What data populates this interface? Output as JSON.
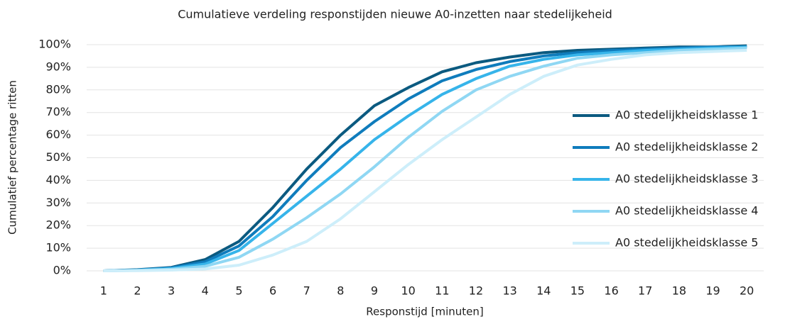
{
  "chart_data": {
    "type": "line",
    "title": "Cumulatieve verdeling responstijden nieuwe A0-inzetten naar stedelijkeheid",
    "x_label": "Responstijd [minuten]",
    "y_label": "Cumulatief percentage ritten",
    "categories": [
      "1",
      "2",
      "3",
      "4",
      "5",
      "6",
      "7",
      "8",
      "9",
      "10",
      "11",
      "12",
      "13",
      "14",
      "15",
      "16",
      "17",
      "18",
      "19",
      "20"
    ],
    "ylim": [
      0,
      100
    ],
    "yticks": [
      {
        "value": 0,
        "label": "0%"
      },
      {
        "value": 10,
        "label": "10%"
      },
      {
        "value": 20,
        "label": "20%"
      },
      {
        "value": 30,
        "label": "30%"
      },
      {
        "value": 40,
        "label": "40%"
      },
      {
        "value": 50,
        "label": "50%"
      },
      {
        "value": 60,
        "label": "60%"
      },
      {
        "value": 70,
        "label": "70%"
      },
      {
        "value": 80,
        "label": "80%"
      },
      {
        "value": 90,
        "label": "90%"
      },
      {
        "value": 100,
        "label": "100%"
      }
    ],
    "grid": true,
    "legend": "right",
    "series": [
      {
        "name": "A0 stedelijkheidsklasse 1",
        "color": "#0b5a80",
        "values": [
          0,
          0.5,
          1.5,
          5,
          13,
          28,
          45,
          60,
          73,
          81,
          88,
          92,
          94.5,
          96.5,
          97.5,
          98,
          98.5,
          99,
          99,
          99.5
        ]
      },
      {
        "name": "A0 stedelijkheidsklasse 2",
        "color": "#0f7cbc",
        "values": [
          0,
          0.4,
          1.3,
          4,
          11,
          24,
          40,
          54.5,
          66,
          76,
          84,
          89,
          92.5,
          95,
          96.5,
          97.5,
          98,
          98.5,
          99,
          99
        ]
      },
      {
        "name": "A0 stedelijkheidsklasse 3",
        "color": "#36b4ea",
        "values": [
          0,
          0.3,
          1,
          3,
          9,
          21,
          33,
          45,
          58,
          68.5,
          78,
          85,
          90.5,
          93.5,
          95.5,
          96.5,
          97.5,
          98,
          98.5,
          99
        ]
      },
      {
        "name": "A0 stedelijkheidsklasse 4",
        "color": "#8fd7f3",
        "values": [
          0,
          0.2,
          0.7,
          2,
          6,
          14,
          23.5,
          34,
          46,
          59,
          70.5,
          80,
          86,
          90.5,
          94,
          95.5,
          96.5,
          97.5,
          98,
          98.5
        ]
      },
      {
        "name": "A0 stedelijkheidsklasse 5",
        "color": "#cdeefa",
        "values": [
          0,
          0.1,
          0.3,
          0.8,
          2.5,
          7,
          13,
          23,
          35,
          47,
          58,
          68,
          78,
          86,
          91,
          93.5,
          95.5,
          96.5,
          97,
          97.5
        ]
      }
    ]
  }
}
